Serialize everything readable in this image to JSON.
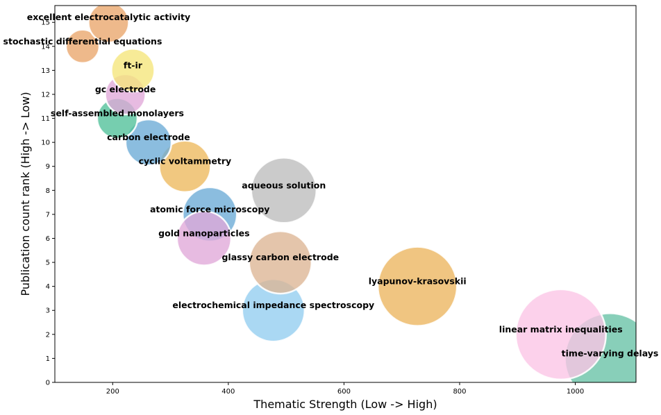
{
  "chart_data": {
    "type": "scatter",
    "subtype": "bubble",
    "title": "",
    "xlabel": "Thematic Strength (Low -> High)",
    "ylabel": "Publication count rank (High -> Low)",
    "xlim": [
      100,
      1105
    ],
    "ylim": [
      0,
      15.7
    ],
    "xticks": [
      200,
      400,
      600,
      800,
      1000
    ],
    "yticks": [
      0,
      1,
      2,
      3,
      4,
      5,
      6,
      7,
      8,
      9,
      10,
      11,
      12,
      13,
      14,
      15
    ],
    "grid": false,
    "legend": "none",
    "points": [
      {
        "label": "time-varying delays",
        "x": 1060,
        "y": 1,
        "size": 65,
        "color": "#66c2a5"
      },
      {
        "label": "linear matrix inequalities",
        "x": 975,
        "y": 2,
        "size": 65,
        "color": "#fbc4e6"
      },
      {
        "label": "lyapunov-krasovskii",
        "x": 727,
        "y": 4,
        "size": 57,
        "color": "#ecb55e"
      },
      {
        "label": "electrochemical impedance spectroscopy",
        "x": 478,
        "y": 3,
        "size": 45,
        "color": "#92cdef"
      },
      {
        "label": "glassy carbon electrode",
        "x": 490,
        "y": 5,
        "size": 45,
        "color": "#dcb593"
      },
      {
        "label": "aqueous solution",
        "x": 496,
        "y": 8,
        "size": 47,
        "color": "#bdbdbd"
      },
      {
        "label": "atomic force microscopy",
        "x": 368,
        "y": 7,
        "size": 39,
        "color": "#6aaad6"
      },
      {
        "label": "gold nanoparticles",
        "x": 358,
        "y": 6,
        "size": 39,
        "color": "#e0a8d8"
      },
      {
        "label": "cyclic voltammetry",
        "x": 325,
        "y": 9,
        "size": 37,
        "color": "#edb85c"
      },
      {
        "label": "carbon electrode",
        "x": 262,
        "y": 10,
        "size": 33,
        "color": "#6aaad6"
      },
      {
        "label": "self-assembled monolayers",
        "x": 208,
        "y": 11,
        "size": 29,
        "color": "#4fc099"
      },
      {
        "label": "gc electrode",
        "x": 222,
        "y": 12,
        "size": 29,
        "color": "#e0a8d8"
      },
      {
        "label": "ft-ir",
        "x": 235,
        "y": 13,
        "size": 31,
        "color": "#f5e57a"
      },
      {
        "label": "stochastic differential equations",
        "x": 148,
        "y": 14,
        "size": 24,
        "color": "#e9a56a"
      },
      {
        "label": "excellent electrocatalytic activity",
        "x": 193,
        "y": 15,
        "size": 29,
        "color": "#e9a56a"
      }
    ]
  }
}
